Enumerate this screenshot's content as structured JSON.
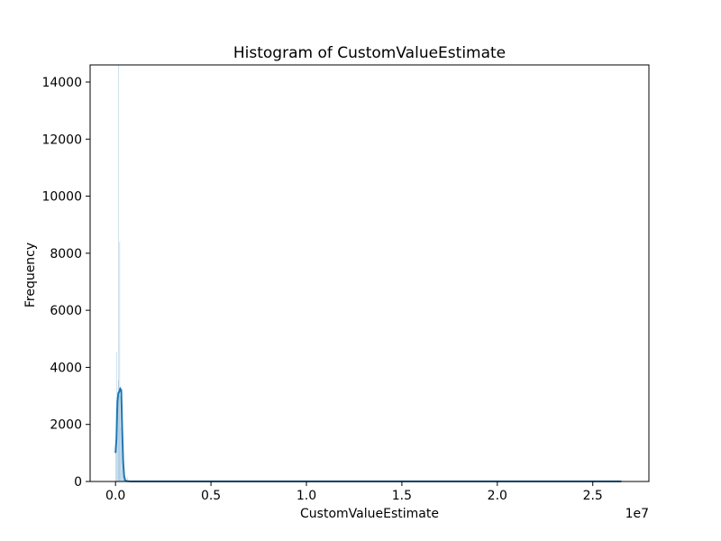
{
  "chart_data": {
    "type": "histogram",
    "title": "Histogram of CustomValueEstimate",
    "xlabel": "CustomValueEstimate",
    "ylabel": "Frequency",
    "x_offset_label": "1e7",
    "xlim": [
      -1330000,
      27940000
    ],
    "ylim": [
      0,
      14600
    ],
    "x_ticks": [
      {
        "value": 0,
        "label": "0.0"
      },
      {
        "value": 5000000,
        "label": "0.5"
      },
      {
        "value": 10000000,
        "label": "1.0"
      },
      {
        "value": 15000000,
        "label": "1.5"
      },
      {
        "value": 20000000,
        "label": "2.0"
      },
      {
        "value": 25000000,
        "label": "2.5"
      }
    ],
    "y_ticks": [
      {
        "value": 0,
        "label": "0"
      },
      {
        "value": 2000,
        "label": "2000"
      },
      {
        "value": 4000,
        "label": "4000"
      },
      {
        "value": 6000,
        "label": "6000"
      },
      {
        "value": 8000,
        "label": "8000"
      },
      {
        "value": 10000,
        "label": "10000"
      },
      {
        "value": 12000,
        "label": "12000"
      },
      {
        "value": 14000,
        "label": "14000"
      }
    ],
    "bar_color": "#1f77b4",
    "kde_color": "#1f77b4",
    "grid": false,
    "bins": [
      {
        "x0": 0,
        "x1": 26000,
        "count": 1200
      },
      {
        "x0": 26000,
        "x1": 52000,
        "count": 2600
      },
      {
        "x0": 52000,
        "x1": 78000,
        "count": 4550
      },
      {
        "x0": 78000,
        "x1": 104000,
        "count": 3000
      },
      {
        "x0": 104000,
        "x1": 130000,
        "count": 2300
      },
      {
        "x0": 130000,
        "x1": 156000,
        "count": 3550
      },
      {
        "x0": 156000,
        "x1": 182000,
        "count": 14600
      },
      {
        "x0": 182000,
        "x1": 208000,
        "count": 3300
      },
      {
        "x0": 208000,
        "x1": 234000,
        "count": 8400
      },
      {
        "x0": 234000,
        "x1": 260000,
        "count": 3000
      },
      {
        "x0": 260000,
        "x1": 286000,
        "count": 1900
      },
      {
        "x0": 286000,
        "x1": 312000,
        "count": 2600
      },
      {
        "x0": 312000,
        "x1": 338000,
        "count": 1700
      },
      {
        "x0": 338000,
        "x1": 364000,
        "count": 900
      },
      {
        "x0": 364000,
        "x1": 390000,
        "count": 600
      },
      {
        "x0": 390000,
        "x1": 416000,
        "count": 450
      },
      {
        "x0": 416000,
        "x1": 442000,
        "count": 300
      },
      {
        "x0": 442000,
        "x1": 468000,
        "count": 200
      },
      {
        "x0": 468000,
        "x1": 494000,
        "count": 120
      },
      {
        "x0": 494000,
        "x1": 520000,
        "count": 80
      },
      {
        "x0": 520000,
        "x1": 546000,
        "count": 60
      },
      {
        "x0": 546000,
        "x1": 572000,
        "count": 40
      },
      {
        "x0": 572000,
        "x1": 598000,
        "count": 30
      },
      {
        "x0": 598000,
        "x1": 624000,
        "count": 25
      },
      {
        "x0": 624000,
        "x1": 650000,
        "count": 150
      },
      {
        "x0": 650000,
        "x1": 676000,
        "count": 15
      },
      {
        "x0": 676000,
        "x1": 702000,
        "count": 10
      },
      {
        "x0": 702000,
        "x1": 728000,
        "count": 8
      },
      {
        "x0": 728000,
        "x1": 754000,
        "count": 6
      },
      {
        "x0": 754000,
        "x1": 780000,
        "count": 5
      }
    ],
    "kde": {
      "x": [
        0,
        50000,
        100000,
        150000,
        200000,
        250000,
        300000,
        350000,
        400000,
        450000,
        500000,
        550000,
        600000,
        700000,
        800000,
        900000,
        1000000,
        1500000,
        3000000,
        5000000,
        10000000,
        15000000,
        19000000,
        22000000,
        26500000
      ],
      "y": [
        1000,
        1500,
        2800,
        3100,
        3150,
        3250,
        3200,
        1800,
        700,
        200,
        60,
        20,
        10,
        6,
        5,
        5,
        5,
        5,
        5,
        5,
        5,
        5,
        5,
        5,
        5
      ]
    }
  }
}
